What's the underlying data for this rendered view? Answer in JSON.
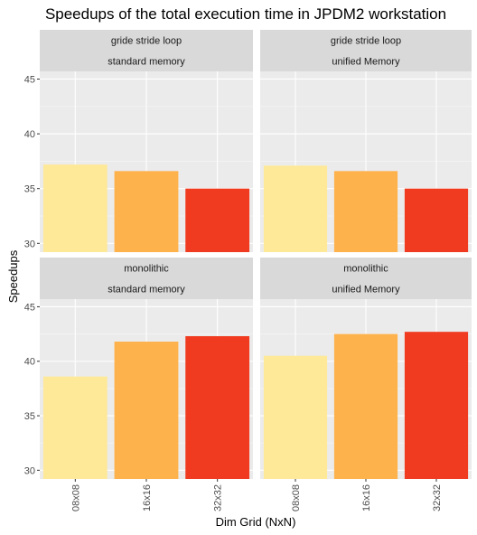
{
  "chart_data": {
    "type": "bar",
    "title": "Speedups of the total execution time in JPDM2 workstation",
    "xlabel": "Dim Grid (NxN)",
    "ylabel": "Speedups",
    "categories": [
      "08x08",
      "16x16",
      "32x32"
    ],
    "colors": [
      "#FEE999",
      "#FDB24C",
      "#F03B20"
    ],
    "ylim": [
      29.2,
      45.7
    ],
    "yticks": [
      30,
      35,
      40,
      45
    ],
    "grid": true,
    "legend": "none",
    "panels": [
      {
        "strip": [
          "gride stride loop",
          "standard memory"
        ],
        "values": [
          37.2,
          36.6,
          35.0
        ]
      },
      {
        "strip": [
          "gride stride loop",
          "unified Memory"
        ],
        "values": [
          37.1,
          36.6,
          35.0
        ]
      },
      {
        "strip": [
          "monolithic",
          "standard memory"
        ],
        "values": [
          38.6,
          41.8,
          42.3
        ]
      },
      {
        "strip": [
          "monolithic",
          "unified Memory"
        ],
        "values": [
          40.5,
          42.5,
          42.7
        ]
      }
    ]
  }
}
